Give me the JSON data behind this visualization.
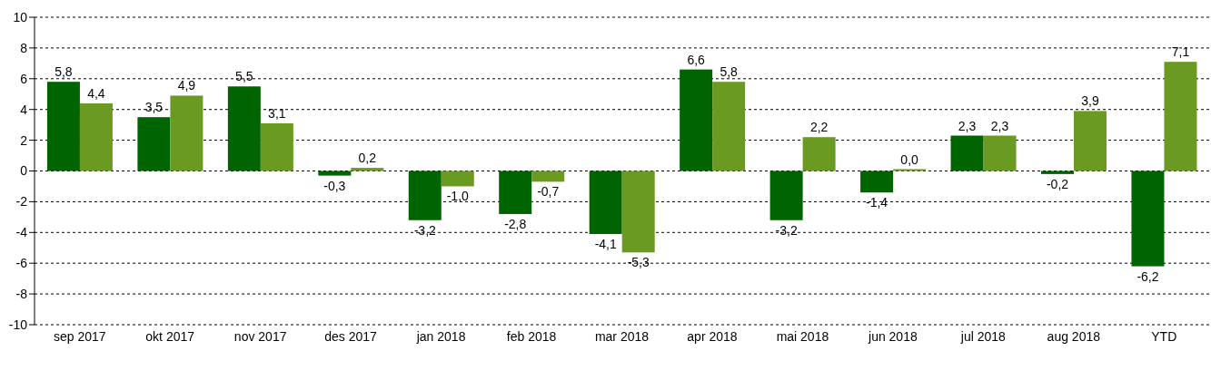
{
  "chart_data": {
    "type": "bar",
    "categories": [
      "sep 2017",
      "okt 2017",
      "nov 2017",
      "des 2017",
      "jan 2018",
      "feb 2018",
      "mar 2018",
      "apr 2018",
      "mai 2018",
      "jun 2018",
      "jul 2018",
      "aug 2018",
      "YTD"
    ],
    "series": [
      {
        "color": "#006400",
        "values": [
          5.8,
          3.5,
          5.5,
          -0.3,
          -3.2,
          -2.8,
          -4.1,
          6.6,
          -3.2,
          -1.4,
          2.3,
          -0.2,
          -6.2
        ],
        "value_labels": [
          "5,8",
          "3,5",
          "5,5",
          "-0,3",
          "-3,2",
          "-2,8",
          "-4,1",
          "6,6",
          "-3,2",
          "-1,4",
          "2,3",
          "-0,2",
          "-6,2"
        ]
      },
      {
        "color": "#6b9a22",
        "values": [
          4.4,
          4.9,
          3.1,
          0.2,
          -1.0,
          -0.7,
          -5.3,
          5.8,
          2.2,
          0.0,
          2.3,
          3.9,
          7.1
        ],
        "value_labels": [
          "4,4",
          "4,9",
          "3,1",
          "0,2",
          "-1,0",
          "-0,7",
          "-5,3",
          "5,8",
          "2,2",
          "0,0",
          "2,3",
          "3,9",
          "7,1"
        ]
      }
    ],
    "ylim": [
      -10,
      10
    ],
    "yticks": [
      -10,
      -8,
      -6,
      -4,
      -2,
      0,
      2,
      4,
      6,
      8,
      10
    ],
    "grid": "y"
  }
}
